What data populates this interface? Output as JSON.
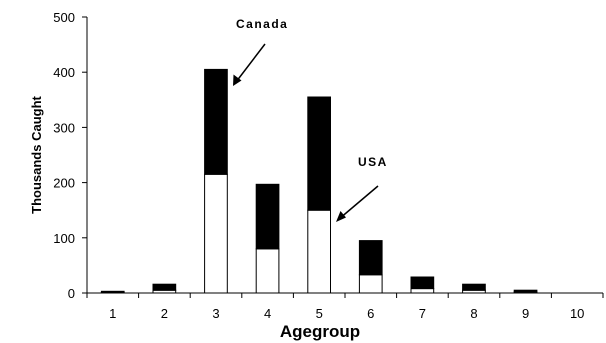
{
  "chart_data": {
    "type": "bar",
    "stacked": true,
    "title": "",
    "xlabel": "Agegroup",
    "ylabel": "Thousands Caught",
    "categories": [
      "1",
      "2",
      "3",
      "4",
      "5",
      "6",
      "7",
      "8",
      "9",
      "10"
    ],
    "series": [
      {
        "name": "USA",
        "color": "#ffffff",
        "values": [
          1,
          5,
          215,
          80,
          150,
          33,
          8,
          5,
          2,
          0
        ]
      },
      {
        "name": "Canada",
        "color": "#000000",
        "values": [
          2,
          11,
          190,
          117,
          205,
          62,
          21,
          11,
          3,
          0
        ]
      }
    ],
    "ylim": [
      0,
      500
    ],
    "yticks": [
      0,
      100,
      200,
      300,
      400,
      500
    ],
    "grid": false,
    "legend": "none",
    "annotations": [
      {
        "text": "Canada",
        "target_category": "3",
        "target_series": "Canada"
      },
      {
        "text": "USA",
        "target_category": "5",
        "target_series": "USA"
      }
    ]
  }
}
